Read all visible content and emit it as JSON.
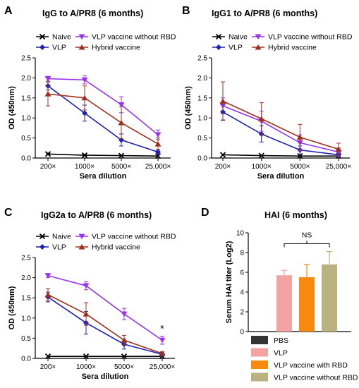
{
  "colors": {
    "naive": "#000000",
    "vlp": "#1f1fb4",
    "vlp_no_rbd": "#9933ee",
    "hybrid": "#a0301e",
    "bar_pbs": "#333333",
    "bar_vlp": "#f4a3a3",
    "bar_vlp_rbd": "#f78a0e",
    "bar_vlp_no_rbd": "#b9b280"
  },
  "chart_data": [
    {
      "panel": "A",
      "type": "line",
      "title": "IgG to A/PR8 (6 months)",
      "xlabel": "Sera dilution",
      "ylabel": "OD (450nm)",
      "categories": [
        "200×",
        "1000×",
        "5000×",
        "25,000×"
      ],
      "yticks": [
        "0.0",
        "0.5",
        "1.0",
        "1.5",
        "2.0",
        "2.5"
      ],
      "ylim": [
        0,
        2.5
      ],
      "series": [
        {
          "name": "Naive",
          "values": [
            0.1,
            0.07,
            0.06,
            0.05
          ],
          "err": [
            0.02,
            0.02,
            0.01,
            0.01
          ]
        },
        {
          "name": "VLP",
          "values": [
            1.8,
            1.12,
            0.45,
            0.15
          ],
          "err": [
            0.1,
            0.2,
            0.15,
            0.06
          ]
        },
        {
          "name": "VLP vaccine without RBD",
          "values": [
            1.98,
            1.95,
            1.33,
            0.58
          ],
          "err": [
            0.06,
            0.1,
            0.2,
            0.12
          ]
        },
        {
          "name": "Hybrid vaccine",
          "values": [
            1.6,
            1.5,
            0.88,
            0.35
          ],
          "err": [
            0.3,
            0.3,
            0.4,
            0.15
          ]
        }
      ],
      "annotation": ""
    },
    {
      "panel": "B",
      "type": "line",
      "title": "IgG1 to A/PR8 (6 months)",
      "xlabel": "Sera dilution",
      "ylabel": "OD (450nm)",
      "categories": [
        "200×",
        "1000×",
        "5000×",
        "25,000×"
      ],
      "yticks": [
        "0.0",
        "0.5",
        "1.0",
        "1.5",
        "2.0",
        "2.5"
      ],
      "ylim": [
        0,
        2.5
      ],
      "series": [
        {
          "name": "Naive",
          "values": [
            0.08,
            0.06,
            0.05,
            0.05
          ],
          "err": [
            0.01,
            0.01,
            0.01,
            0.01
          ]
        },
        {
          "name": "VLP",
          "values": [
            1.15,
            0.6,
            0.2,
            0.08
          ],
          "err": [
            0.2,
            0.2,
            0.1,
            0.05
          ]
        },
        {
          "name": "VLP vaccine without RBD",
          "values": [
            1.3,
            0.92,
            0.38,
            0.15
          ],
          "err": [
            0.2,
            0.25,
            0.2,
            0.1
          ]
        },
        {
          "name": "Hybrid vaccine",
          "values": [
            1.42,
            0.98,
            0.52,
            0.22
          ],
          "err": [
            0.48,
            0.4,
            0.32,
            0.15
          ]
        }
      ],
      "annotation": ""
    },
    {
      "panel": "C",
      "type": "line",
      "title": "IgG2a to A/PR8 (6 months)",
      "xlabel": "Sera dilution",
      "ylabel": "OD (450nm)",
      "categories": [
        "200×",
        "1000×",
        "5000×",
        "25,000×"
      ],
      "yticks": [
        "0.0",
        "0.5",
        "1.0",
        "1.5",
        "2.0",
        "2.5"
      ],
      "ylim": [
        0,
        2.5
      ],
      "series": [
        {
          "name": "Naive",
          "values": [
            0.05,
            0.05,
            0.05,
            0.05
          ],
          "err": [
            0.01,
            0.01,
            0.01,
            0.01
          ]
        },
        {
          "name": "VLP",
          "values": [
            1.52,
            0.88,
            0.35,
            0.1
          ],
          "err": [
            0.12,
            0.28,
            0.12,
            0.05
          ]
        },
        {
          "name": "VLP vaccine without RBD",
          "values": [
            2.05,
            1.8,
            1.1,
            0.45
          ],
          "err": [
            0.05,
            0.1,
            0.14,
            0.1
          ]
        },
        {
          "name": "Hybrid vaccine",
          "values": [
            1.58,
            1.1,
            0.45,
            0.12
          ],
          "err": [
            0.15,
            0.28,
            0.12,
            0.05
          ]
        }
      ],
      "annotation": "*"
    },
    {
      "panel": "D",
      "type": "bar",
      "title": "HAI (6 months)",
      "ylabel": "Serum HAI titer (Log2)",
      "yticks": [
        "0",
        "2",
        "4",
        "6",
        "8",
        "10"
      ],
      "ylim": [
        0,
        10
      ],
      "categories": [
        "PBS",
        "VLP",
        "VLP vaccine with RBD",
        "VLP vaccine without RBD"
      ],
      "values": [
        0,
        5.7,
        5.5,
        6.8
      ],
      "err": [
        0,
        0.5,
        1.3,
        1.3
      ],
      "annotation": "NS"
    }
  ]
}
